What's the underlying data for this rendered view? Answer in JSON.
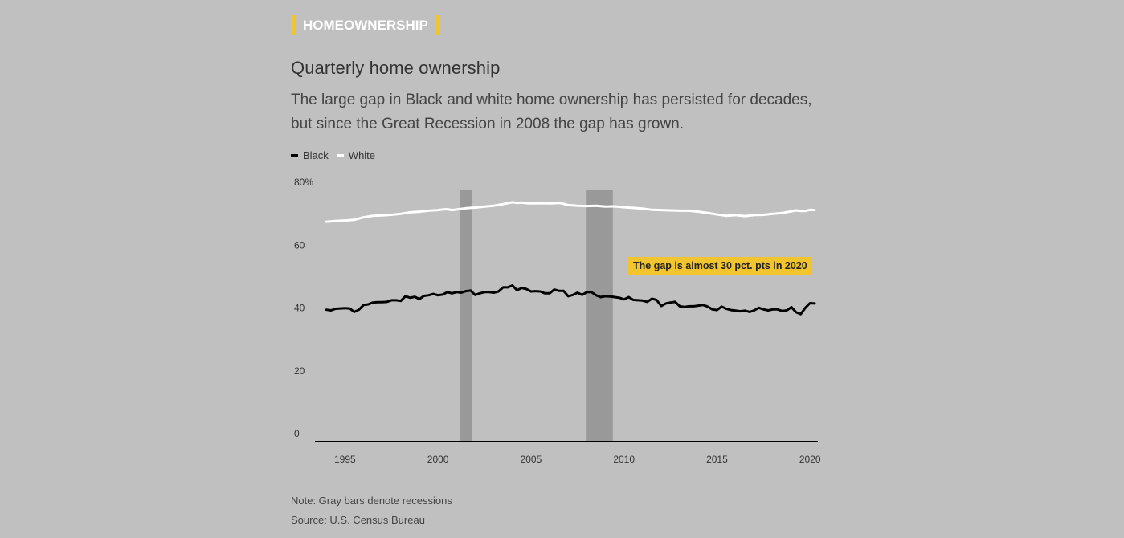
{
  "header": {
    "kicker": "HOMEOWNERSHIP",
    "title": "Quarterly home ownership",
    "subtitle": "The large gap in Black and white home ownership has persisted for decades, but since the Great Recession in 2008 the gap has grown."
  },
  "footer": {
    "note": "Note: Gray bars denote recessions",
    "source": "Source: U.S. Census Bureau"
  },
  "colors": {
    "background": "#c0c0c0",
    "accent": "#f2c52e",
    "black_series": "#000000",
    "white_series": "#ffffff",
    "recession": "#999999"
  },
  "chart_data": {
    "type": "line",
    "xlim": [
      1994.25,
      2020.25
    ],
    "ylim": [
      0,
      80
    ],
    "x_ticks": [
      {
        "value": 1995,
        "label": "1995"
      },
      {
        "value": 2000,
        "label": "2000"
      },
      {
        "value": 2005,
        "label": "2005"
      },
      {
        "value": 2010,
        "label": "2010"
      },
      {
        "value": 2015,
        "label": "2015"
      },
      {
        "value": 2020,
        "label": "2020"
      }
    ],
    "y_ticks": [
      {
        "value": 0,
        "label": "0"
      },
      {
        "value": 20,
        "label": "20"
      },
      {
        "value": 40,
        "label": "40"
      },
      {
        "value": 60,
        "label": "60"
      },
      {
        "value": 80,
        "label": "80%"
      }
    ],
    "grid": false,
    "legend_position": "top-left",
    "recessions": [
      {
        "start": 2001.2,
        "end": 2001.85
      },
      {
        "start": 2007.95,
        "end": 2009.4
      }
    ],
    "annotations": [
      {
        "text": "The gap is almost 30 pct. pts in 2020"
      }
    ],
    "series": [
      {
        "name": "Black",
        "color": "#000000",
        "points": [
          [
            1994.0,
            42.0
          ],
          [
            1994.25,
            41.8
          ],
          [
            1994.5,
            42.3
          ],
          [
            1994.75,
            42.4
          ],
          [
            1995.0,
            42.5
          ],
          [
            1995.25,
            42.4
          ],
          [
            1995.5,
            41.3
          ],
          [
            1995.75,
            42.0
          ],
          [
            1996.0,
            43.5
          ],
          [
            1996.25,
            43.7
          ],
          [
            1996.5,
            44.3
          ],
          [
            1996.75,
            44.4
          ],
          [
            1997.0,
            44.4
          ],
          [
            1997.25,
            44.5
          ],
          [
            1997.5,
            45.0
          ],
          [
            1997.75,
            45.0
          ],
          [
            1998.0,
            44.8
          ],
          [
            1998.25,
            46.3
          ],
          [
            1998.5,
            45.8
          ],
          [
            1998.75,
            46.1
          ],
          [
            1999.0,
            45.4
          ],
          [
            1999.25,
            46.4
          ],
          [
            1999.5,
            46.6
          ],
          [
            1999.75,
            47.0
          ],
          [
            2000.0,
            46.6
          ],
          [
            2000.25,
            46.8
          ],
          [
            2000.5,
            47.6
          ],
          [
            2000.75,
            47.2
          ],
          [
            2001.0,
            47.6
          ],
          [
            2001.25,
            47.4
          ],
          [
            2001.5,
            47.9
          ],
          [
            2001.75,
            48.1
          ],
          [
            2002.0,
            46.7
          ],
          [
            2002.25,
            47.2
          ],
          [
            2002.5,
            47.6
          ],
          [
            2002.75,
            47.6
          ],
          [
            2003.0,
            47.4
          ],
          [
            2003.25,
            47.8
          ],
          [
            2003.5,
            49.1
          ],
          [
            2003.75,
            49.1
          ],
          [
            2004.0,
            49.7
          ],
          [
            2004.25,
            48.2
          ],
          [
            2004.5,
            48.9
          ],
          [
            2004.75,
            48.6
          ],
          [
            2005.0,
            47.8
          ],
          [
            2005.25,
            47.9
          ],
          [
            2005.5,
            47.8
          ],
          [
            2005.75,
            47.2
          ],
          [
            2006.0,
            47.2
          ],
          [
            2006.25,
            48.4
          ],
          [
            2006.5,
            48.0
          ],
          [
            2006.75,
            48.0
          ],
          [
            2007.0,
            46.3
          ],
          [
            2007.25,
            46.7
          ],
          [
            2007.5,
            47.4
          ],
          [
            2007.75,
            46.7
          ],
          [
            2008.0,
            47.6
          ],
          [
            2008.25,
            47.6
          ],
          [
            2008.5,
            46.6
          ],
          [
            2008.75,
            46.0
          ],
          [
            2009.0,
            46.3
          ],
          [
            2009.25,
            46.2
          ],
          [
            2009.5,
            46.0
          ],
          [
            2009.75,
            45.8
          ],
          [
            2010.0,
            45.3
          ],
          [
            2010.25,
            46.0
          ],
          [
            2010.5,
            45.1
          ],
          [
            2010.75,
            45.0
          ],
          [
            2011.0,
            44.9
          ],
          [
            2011.25,
            44.5
          ],
          [
            2011.5,
            45.5
          ],
          [
            2011.75,
            45.1
          ],
          [
            2012.0,
            43.2
          ],
          [
            2012.25,
            44.0
          ],
          [
            2012.5,
            44.3
          ],
          [
            2012.75,
            44.5
          ],
          [
            2013.0,
            43.1
          ],
          [
            2013.25,
            42.9
          ],
          [
            2013.5,
            43.1
          ],
          [
            2013.75,
            43.1
          ],
          [
            2014.0,
            43.3
          ],
          [
            2014.25,
            43.5
          ],
          [
            2014.5,
            43.0
          ],
          [
            2014.75,
            42.1
          ],
          [
            2015.0,
            41.9
          ],
          [
            2015.25,
            43.0
          ],
          [
            2015.5,
            42.3
          ],
          [
            2015.75,
            41.9
          ],
          [
            2016.0,
            41.7
          ],
          [
            2016.25,
            41.5
          ],
          [
            2016.5,
            41.7
          ],
          [
            2016.75,
            41.3
          ],
          [
            2017.0,
            41.8
          ],
          [
            2017.25,
            42.6
          ],
          [
            2017.5,
            42.1
          ],
          [
            2017.75,
            41.8
          ],
          [
            2018.0,
            42.1
          ],
          [
            2018.25,
            42.1
          ],
          [
            2018.5,
            41.6
          ],
          [
            2018.75,
            41.8
          ],
          [
            2019.0,
            42.8
          ],
          [
            2019.25,
            41.2
          ],
          [
            2019.5,
            40.6
          ],
          [
            2019.75,
            42.6
          ],
          [
            2020.0,
            44.1
          ],
          [
            2020.25,
            44.0
          ]
        ]
      },
      {
        "name": "White",
        "color": "#ffffff",
        "points": [
          [
            1994.0,
            70.0
          ],
          [
            1994.5,
            70.2
          ],
          [
            1995.0,
            70.4
          ],
          [
            1995.5,
            70.6
          ],
          [
            1996.0,
            71.4
          ],
          [
            1996.5,
            71.9
          ],
          [
            1997.0,
            72.0
          ],
          [
            1997.5,
            72.2
          ],
          [
            1998.0,
            72.5
          ],
          [
            1998.5,
            73.0
          ],
          [
            1999.0,
            73.2
          ],
          [
            1999.5,
            73.5
          ],
          [
            2000.0,
            73.7
          ],
          [
            2000.25,
            73.9
          ],
          [
            2000.5,
            74.0
          ],
          [
            2000.75,
            73.7
          ],
          [
            2001.0,
            73.9
          ],
          [
            2001.5,
            74.3
          ],
          [
            2002.0,
            74.5
          ],
          [
            2002.5,
            74.8
          ],
          [
            2003.0,
            75.1
          ],
          [
            2003.5,
            75.6
          ],
          [
            2004.0,
            76.2
          ],
          [
            2004.25,
            76.0
          ],
          [
            2004.5,
            76.1
          ],
          [
            2004.75,
            75.9
          ],
          [
            2005.0,
            75.8
          ],
          [
            2005.5,
            75.9
          ],
          [
            2006.0,
            75.8
          ],
          [
            2006.5,
            76.0
          ],
          [
            2006.75,
            75.7
          ],
          [
            2007.0,
            75.3
          ],
          [
            2007.5,
            75.1
          ],
          [
            2008.0,
            75.0
          ],
          [
            2008.5,
            75.1
          ],
          [
            2009.0,
            74.8
          ],
          [
            2009.5,
            74.9
          ],
          [
            2010.0,
            74.6
          ],
          [
            2010.5,
            74.4
          ],
          [
            2011.0,
            74.2
          ],
          [
            2011.5,
            73.8
          ],
          [
            2012.0,
            73.7
          ],
          [
            2012.5,
            73.6
          ],
          [
            2013.0,
            73.5
          ],
          [
            2013.5,
            73.5
          ],
          [
            2014.0,
            73.2
          ],
          [
            2014.5,
            72.8
          ],
          [
            2015.0,
            72.3
          ],
          [
            2015.5,
            71.9
          ],
          [
            2016.0,
            72.1
          ],
          [
            2016.5,
            71.8
          ],
          [
            2017.0,
            72.1
          ],
          [
            2017.5,
            72.2
          ],
          [
            2018.0,
            72.5
          ],
          [
            2018.5,
            72.8
          ],
          [
            2019.0,
            73.3
          ],
          [
            2019.25,
            73.6
          ],
          [
            2019.5,
            73.4
          ],
          [
            2019.75,
            73.4
          ],
          [
            2020.0,
            73.8
          ],
          [
            2020.25,
            73.7
          ]
        ]
      }
    ]
  }
}
